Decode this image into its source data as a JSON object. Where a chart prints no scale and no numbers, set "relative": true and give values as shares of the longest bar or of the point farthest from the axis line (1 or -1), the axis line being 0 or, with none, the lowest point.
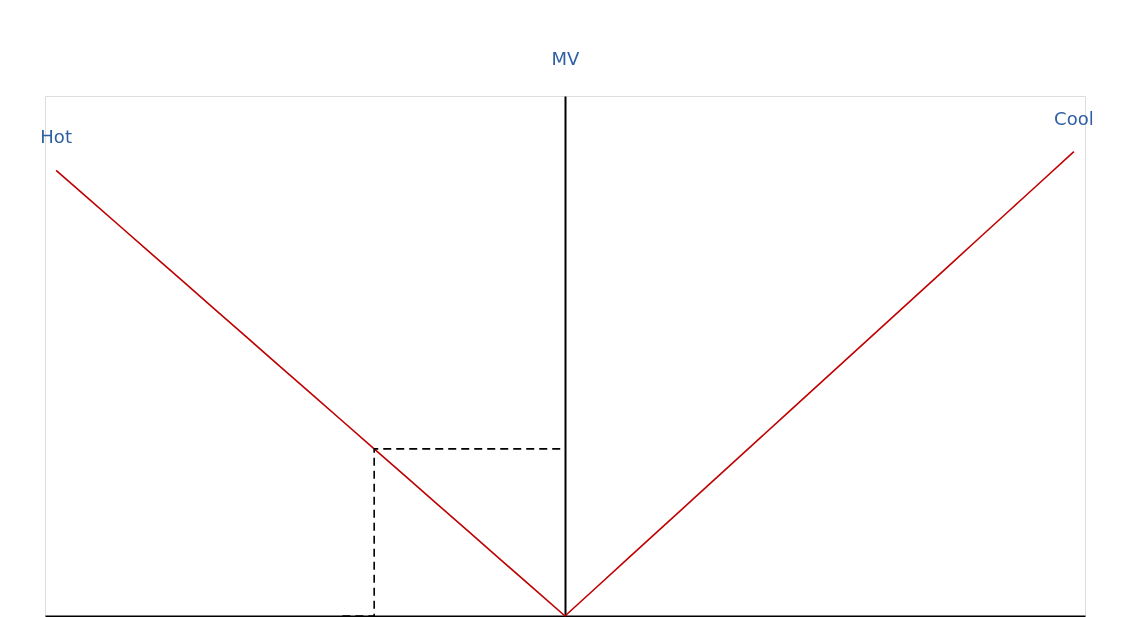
{
  "chart_data": {
    "type": "line",
    "relative": true,
    "ylabel": "MV",
    "categories": [
      null,
      null,
      null,
      null,
      null,
      null,
      null,
      null,
      null,
      null,
      null,
      null,
      null,
      null,
      null,
      null,
      null,
      null,
      null,
      null,
      null,
      null,
      null,
      null,
      null,
      null,
      null,
      null,
      null,
      null,
      null,
      null,
      null
    ],
    "series": [
      {
        "name": "Hot",
        "color": "#c00000",
        "values": [
          0.96,
          0.9,
          0.84,
          0.78,
          0.72,
          0.66,
          0.6,
          0.54,
          0.48,
          0.42,
          0.36,
          0.3,
          0.24,
          0.18,
          0.12,
          0.06,
          0,
          null,
          null,
          null,
          null,
          null,
          null,
          null,
          null,
          null,
          null,
          null,
          null,
          null,
          null,
          null,
          null
        ]
      },
      {
        "name": "Cool",
        "color": "#c00000",
        "values": [
          null,
          null,
          null,
          null,
          null,
          null,
          null,
          null,
          null,
          null,
          null,
          null,
          null,
          null,
          null,
          null,
          0,
          0.0625,
          0.125,
          0.1875,
          0.25,
          0.3125,
          0.375,
          0.4375,
          0.5,
          0.5625,
          0.625,
          0.6875,
          0.75,
          0.8125,
          0.875,
          0.9375,
          1
        ]
      },
      {
        "type": "step",
        "color": "#000000",
        "line_style": "dashed",
        "values": [
          null,
          null,
          null,
          null,
          null,
          null,
          null,
          null,
          null,
          0,
          0.36,
          0.36,
          0.36,
          0.36,
          0.36,
          0.36,
          0.36,
          null,
          null,
          null,
          null,
          null,
          null,
          null,
          null,
          null,
          null,
          null,
          null,
          null,
          null,
          null,
          null
        ]
      }
    ]
  }
}
